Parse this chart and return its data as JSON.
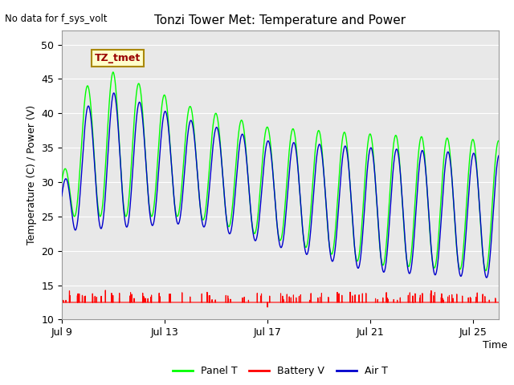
{
  "title": "Tonzi Tower Met: Temperature and Power",
  "ylabel": "Temperature (C) / Power (V)",
  "xlabel": "Time",
  "no_data_label": "No data for f_sys_volt",
  "annotation_label": "TZ_tmet",
  "xlim_days": [
    0,
    17
  ],
  "ylim": [
    10,
    52
  ],
  "yticks": [
    10,
    15,
    20,
    25,
    30,
    35,
    40,
    45,
    50
  ],
  "xtick_labels": [
    "Jul 9",
    "Jul 13",
    "Jul 17",
    "Jul 21",
    "Jul 25"
  ],
  "xtick_positions": [
    0,
    4,
    8,
    12,
    16
  ],
  "background_color": "#e8e8e8",
  "panel_color": "#00ff00",
  "battery_color": "#ff0000",
  "air_color": "#0000cc",
  "legend_labels": [
    "Panel T",
    "Battery V",
    "Air T"
  ],
  "n_days": 17,
  "samples_per_day": 288,
  "figsize": [
    6.4,
    4.8
  ],
  "dpi": 100
}
